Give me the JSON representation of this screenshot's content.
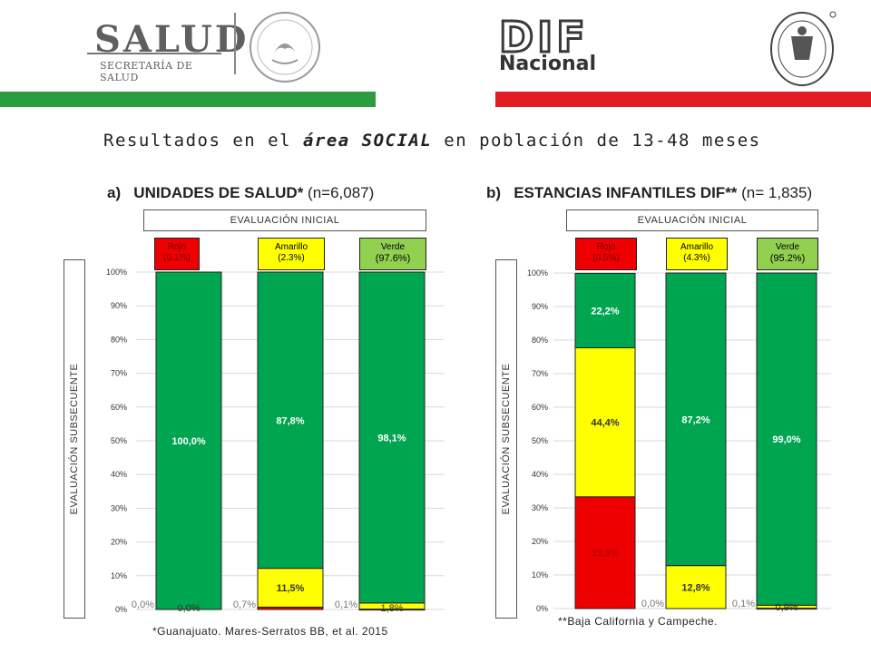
{
  "header": {
    "salud_logo_text": "SALUD",
    "salud_logo_sub": "SECRETARÍA DE SALUD",
    "dif_logo_text": "DIF",
    "dif_logo_sub": "Nacional",
    "colors": {
      "green_band": "#2a9d3e",
      "red_band": "#e31b23"
    }
  },
  "title": {
    "prefix": "Resultados en el ",
    "emphasis": "área SOCIAL",
    "suffix": " en población de 13-48 meses"
  },
  "colors": {
    "rojo": "#ee0000",
    "amarillo": "#ffff00",
    "verde": "#00a550",
    "verde_header": "#92d050"
  },
  "chart_data": [
    {
      "type": "bar",
      "stacked": true,
      "letter": "a)",
      "title": "UNIDADES DE SALUD*",
      "title_n": " (n=6,087)",
      "top_label": "EVALUACIÓN INICIAL",
      "ylabel": "EVALUACIÓN SUBSECUENTE",
      "ylim": [
        0,
        100
      ],
      "yticks": [
        "0%",
        "10%",
        "20%",
        "30%",
        "40%",
        "50%",
        "60%",
        "70%",
        "80%",
        "90%",
        "100%"
      ],
      "categories": [
        {
          "name": "Rojo",
          "pct": "(0.1%)"
        },
        {
          "name": "Amarillo",
          "pct": "(2.3%)"
        },
        {
          "name": "Verde",
          "pct": "(97.6%)"
        }
      ],
      "series": [
        {
          "key": "rojo",
          "values": [
            0.0,
            0.7,
            0.1
          ],
          "labels": [
            "0,0%",
            "0,7%",
            "0,1%"
          ]
        },
        {
          "key": "amarillo",
          "values": [
            0.0,
            11.5,
            1.8
          ],
          "labels": [
            "0,0%",
            "11,5%",
            "1,8%"
          ]
        },
        {
          "key": "verde",
          "values": [
            100.0,
            87.8,
            98.1
          ],
          "labels": [
            "100,0%",
            "87,8%",
            "98,1%"
          ]
        }
      ],
      "footnote": "*Guanajuato. Mares-Serratos BB, et al. 2015"
    },
    {
      "type": "bar",
      "stacked": true,
      "letter": "b)",
      "title": "ESTANCIAS INFANTILES DIF**",
      "title_n": " (n= 1,835)",
      "top_label": "EVALUACIÓN INICIAL",
      "ylabel": "EVALUACIÓN SUBSECUENTE",
      "ylim": [
        0,
        100
      ],
      "yticks": [
        "0%",
        "10%",
        "20%",
        "30%",
        "40%",
        "50%",
        "60%",
        "70%",
        "80%",
        "90%",
        "100%"
      ],
      "categories": [
        {
          "name": "Rojo",
          "pct": "(0.5%)"
        },
        {
          "name": "Amarillo",
          "pct": "(4.3%)"
        },
        {
          "name": "Verde",
          "pct": "(95.2%)"
        }
      ],
      "series": [
        {
          "key": "rojo",
          "values": [
            33.3,
            0.0,
            0.1
          ],
          "labels": [
            "33,3%",
            "0,0%",
            "0,1%"
          ]
        },
        {
          "key": "amarillo",
          "values": [
            44.4,
            12.8,
            0.9
          ],
          "labels": [
            "44,4%",
            "12,8%",
            "0,9%"
          ]
        },
        {
          "key": "verde",
          "values": [
            22.2,
            87.2,
            99.0
          ],
          "labels": [
            "22,2%",
            "87,2%",
            "99,0%"
          ]
        }
      ],
      "footnote": "**Baja California y Campeche."
    }
  ]
}
